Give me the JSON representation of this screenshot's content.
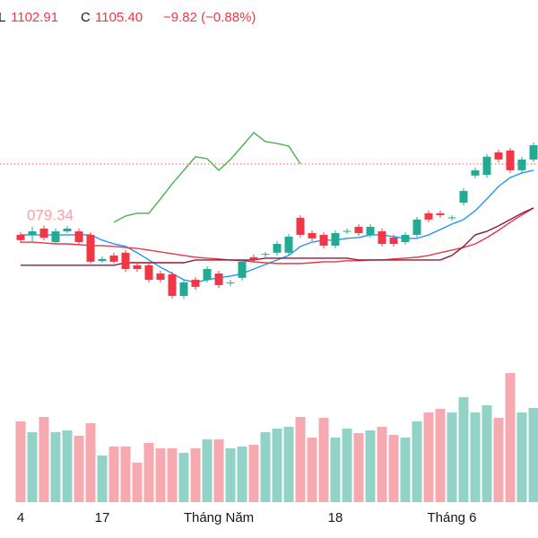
{
  "chart_data": {
    "type": "candlestick",
    "header": {
      "low_label": "L",
      "low": "1102.91",
      "close_label": "C",
      "close": "1105.40",
      "change": "−9.82 (−0.88%)"
    },
    "annotation": "079.34",
    "categories": [
      "4",
      null,
      null,
      null,
      null,
      null,
      null,
      "17",
      null,
      null,
      null,
      null,
      null,
      null,
      null,
      null,
      null,
      "Tháng Năm",
      null,
      null,
      null,
      null,
      null,
      null,
      null,
      null,
      null,
      "18",
      null,
      null,
      null,
      null,
      null,
      null,
      null,
      null,
      null,
      "Tháng 6",
      null,
      null,
      null,
      null,
      null,
      null,
      null
    ],
    "open": [
      1069.3,
      1069.3,
      1072.5,
      1065.6,
      1071.1,
      1071.1,
      1069.3,
      1056.0,
      1058.8,
      1060.2,
      1053.8,
      1053.8,
      1049.6,
      1049.2,
      1038.2,
      1046.4,
      1046.4,
      1049.6,
      1044.6,
      1047.4,
      1057.9,
      1059.2,
      1060.2,
      1060.2,
      1078.0,
      1070.2,
      1069.3,
      1063.8,
      1070.9,
      1073.4,
      1069.3,
      1071.1,
      1067.9,
      1065.6,
      1069.3,
      1080.3,
      1080.3,
      1077.8,
      1085.7,
      1099.5,
      1099.9,
      1111.3,
      1112.3,
      1102.2,
      1107.7
    ],
    "high": [
      1070.7,
      1073.4,
      1073.9,
      1072.5,
      1073.9,
      1072.5,
      1070.7,
      1058.4,
      1060.2,
      1061.5,
      1055.1,
      1055.1,
      1051.0,
      1050.5,
      1046.4,
      1047.8,
      1053.3,
      1051.0,
      1046.4,
      1057.0,
      1059.3,
      1060.6,
      1066.1,
      1069.8,
      1079.4,
      1071.6,
      1070.7,
      1071.6,
      1072.5,
      1074.8,
      1074.8,
      1072.5,
      1069.3,
      1070.7,
      1078.5,
      1081.7,
      1081.7,
      1079.4,
      1093.0,
      1103.6,
      1110.5,
      1112.7,
      1113.6,
      1109.1,
      1116.4
    ],
    "low": [
      1065.2,
      1065.6,
      1066.6,
      1064.7,
      1070.2,
      1064.3,
      1054.7,
      1055.1,
      1054.7,
      1050.5,
      1050.5,
      1045.1,
      1045.1,
      1036.8,
      1036.8,
      1041.4,
      1045.1,
      1042.3,
      1043.2,
      1046.0,
      1055.1,
      1057.9,
      1058.8,
      1058.8,
      1067.9,
      1066.1,
      1062.4,
      1062.4,
      1069.8,
      1068.8,
      1067.9,
      1063.4,
      1063.4,
      1064.3,
      1067.9,
      1075.7,
      1078.0,
      1076.6,
      1084.3,
      1098.1,
      1098.5,
      1106.3,
      1100.8,
      1100.8,
      1106.3
    ],
    "close": [
      1066.6,
      1071.1,
      1067.9,
      1071.1,
      1072.5,
      1065.6,
      1055.6,
      1057.0,
      1055.6,
      1051.9,
      1051.9,
      1046.4,
      1046.4,
      1038.2,
      1045.1,
      1042.8,
      1051.9,
      1043.7,
      1045.0,
      1055.6,
      1056.6,
      1059.6,
      1064.7,
      1068.4,
      1069.3,
      1067.5,
      1063.8,
      1070.2,
      1071.3,
      1070.2,
      1073.4,
      1064.7,
      1064.7,
      1069.3,
      1077.1,
      1077.1,
      1079.34,
      1078.2,
      1091.7,
      1102.2,
      1109.1,
      1107.7,
      1102.2,
      1107.7,
      1115.0
    ],
    "up_color": "#22ab94",
    "down_color": "#f23645",
    "ylim": [
      1035,
      1125
    ],
    "price_line": 1105.4,
    "price_line_color": "#f23645",
    "lines": [
      {
        "color": "#4caf50",
        "values": [
          null,
          null,
          null,
          null,
          null,
          null,
          null,
          null,
          1075.7,
          1078.9,
          1080.3,
          1080.3,
          1087.6,
          1095.3,
          1102.2,
          1109.1,
          1108.1,
          1102.2,
          1107.7,
          1114.5,
          1121.4,
          1116.8,
          1115.9,
          1114.5,
          1105.4,
          null,
          null,
          null,
          null,
          null,
          null,
          null,
          null,
          null,
          null,
          null,
          null,
          null,
          null,
          null,
          null,
          null,
          null,
          null,
          null
        ]
      },
      {
        "color": "#2196f3",
        "values": [
          1069.3,
          1069.3,
          1069.3,
          1069.3,
          1069.3,
          1069.3,
          1069.3,
          1066.6,
          1064.7,
          1063.4,
          1060.2,
          1056.5,
          1052.8,
          1049.6,
          1046.4,
          1045.1,
          1046.4,
          1047.4,
          1048.3,
          1049.6,
          1051.9,
          1054.2,
          1056.5,
          1058.8,
          1063.4,
          1065.6,
          1066.6,
          1066.6,
          1067.5,
          1067.9,
          1069.3,
          1069.3,
          1068.4,
          1067.5,
          1067.5,
          1069.3,
          1072.0,
          1074.8,
          1077.1,
          1081.6,
          1087.6,
          1094.0,
          1098.5,
          1100.8,
          1102.2
        ]
      },
      {
        "color": "#e53945",
        "values": [
          1065.6,
          1065.6,
          1065.2,
          1064.7,
          1064.7,
          1064.3,
          1063.8,
          1063.8,
          1063.4,
          1062.9,
          1062.4,
          1061.5,
          1060.6,
          1059.7,
          1058.8,
          1057.9,
          1057.4,
          1057.0,
          1056.5,
          1056.1,
          1055.6,
          1055.1,
          1054.7,
          1054.7,
          1054.7,
          1055.1,
          1055.6,
          1055.6,
          1056.1,
          1056.1,
          1056.5,
          1056.5,
          1057.0,
          1057.4,
          1057.9,
          1058.8,
          1060.2,
          1061.5,
          1062.9,
          1064.7,
          1067.9,
          1071.6,
          1075.7,
          1079.4,
          1083.0
        ]
      },
      {
        "color": "#8b1a3a",
        "values": [
          1053.8,
          1053.8,
          1053.8,
          1053.8,
          1053.8,
          1053.8,
          1053.8,
          1053.8,
          1053.8,
          1055.1,
          1055.1,
          1055.1,
          1055.1,
          1055.1,
          1055.1,
          1056.5,
          1056.5,
          1056.5,
          1056.5,
          1056.5,
          1056.5,
          1057.4,
          1057.4,
          1057.4,
          1057.4,
          1057.4,
          1057.4,
          1057.4,
          1057.4,
          1056.5,
          1056.5,
          1056.5,
          1056.5,
          1056.5,
          1056.5,
          1056.5,
          1056.5,
          1058.8,
          1063.4,
          1069.3,
          1071.1,
          1073.9,
          1077.1,
          1080.3,
          1083.0
        ]
      }
    ],
    "volume": {
      "values": [
        90,
        78,
        95,
        78,
        80,
        74,
        88,
        52,
        62,
        62,
        44,
        66,
        60,
        60,
        55,
        60,
        70,
        70,
        60,
        62,
        64,
        78,
        82,
        84,
        95,
        72,
        94,
        72,
        82,
        77,
        80,
        84,
        75,
        72,
        90,
        100,
        104,
        100,
        117,
        100,
        108,
        94,
        144,
        100,
        105
      ],
      "ylim": [
        0,
        160
      ],
      "up_color": "#92d2c7",
      "down_color": "#f7a9b0"
    }
  }
}
